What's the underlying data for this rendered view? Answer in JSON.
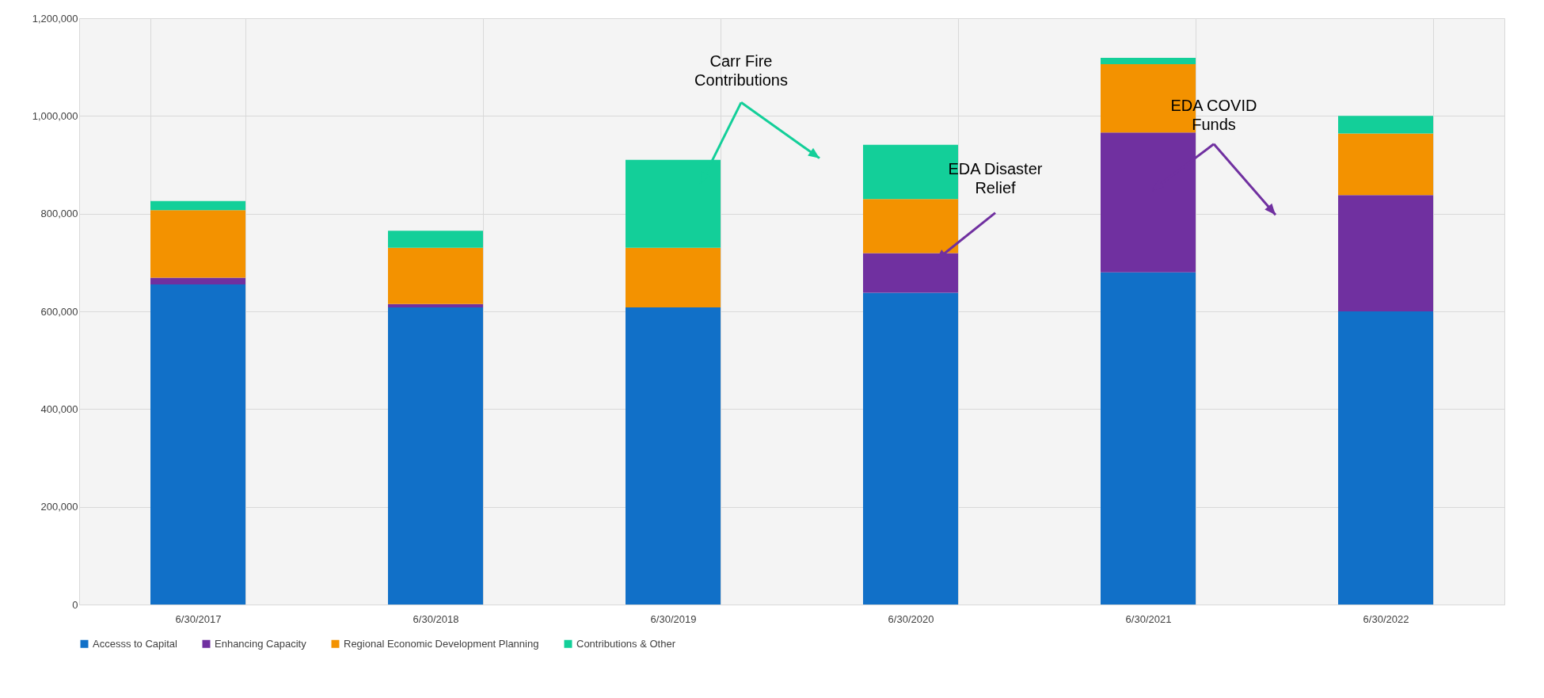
{
  "chart_data": {
    "type": "bar",
    "stacked": true,
    "categories": [
      "6/30/2017",
      "6/30/2018",
      "6/30/2019",
      "6/30/2020",
      "6/30/2021",
      "6/30/2022"
    ],
    "series": [
      {
        "name": "Accesss to Capital",
        "color": "#1170c8",
        "values": [
          655000,
          608000,
          608000,
          638000,
          680000,
          600000
        ]
      },
      {
        "name": "Enhancing Capacity",
        "color": "#7030a0",
        "values": [
          14000,
          7000,
          0,
          81000,
          286000,
          238000
        ]
      },
      {
        "name": "Regional Economic Development Planning",
        "color": "#f39200",
        "values": [
          138000,
          115000,
          122000,
          111000,
          140000,
          126000
        ]
      },
      {
        "name": "Contributions & Other",
        "color": "#13cf99",
        "values": [
          19000,
          35000,
          180000,
          111000,
          13000,
          36000
        ]
      }
    ],
    "ylim": [
      0,
      1200000
    ],
    "yticks": [
      0,
      {
        "value": 200000,
        "label": "200,000"
      },
      {
        "value": 400000,
        "label": "400,000"
      },
      {
        "value": 600000,
        "label": "600,000"
      },
      {
        "value": 800000,
        "label": "800,000"
      },
      {
        "value": 1000000,
        "label": "1,000,000"
      },
      {
        "value": 1200000,
        "label": "1,200,000"
      }
    ],
    "grid": true,
    "legend": "bottom",
    "annotations": [
      "Carr Fire Contributions",
      "EDA Disaster Relief",
      "EDA COVID Funds"
    ]
  }
}
